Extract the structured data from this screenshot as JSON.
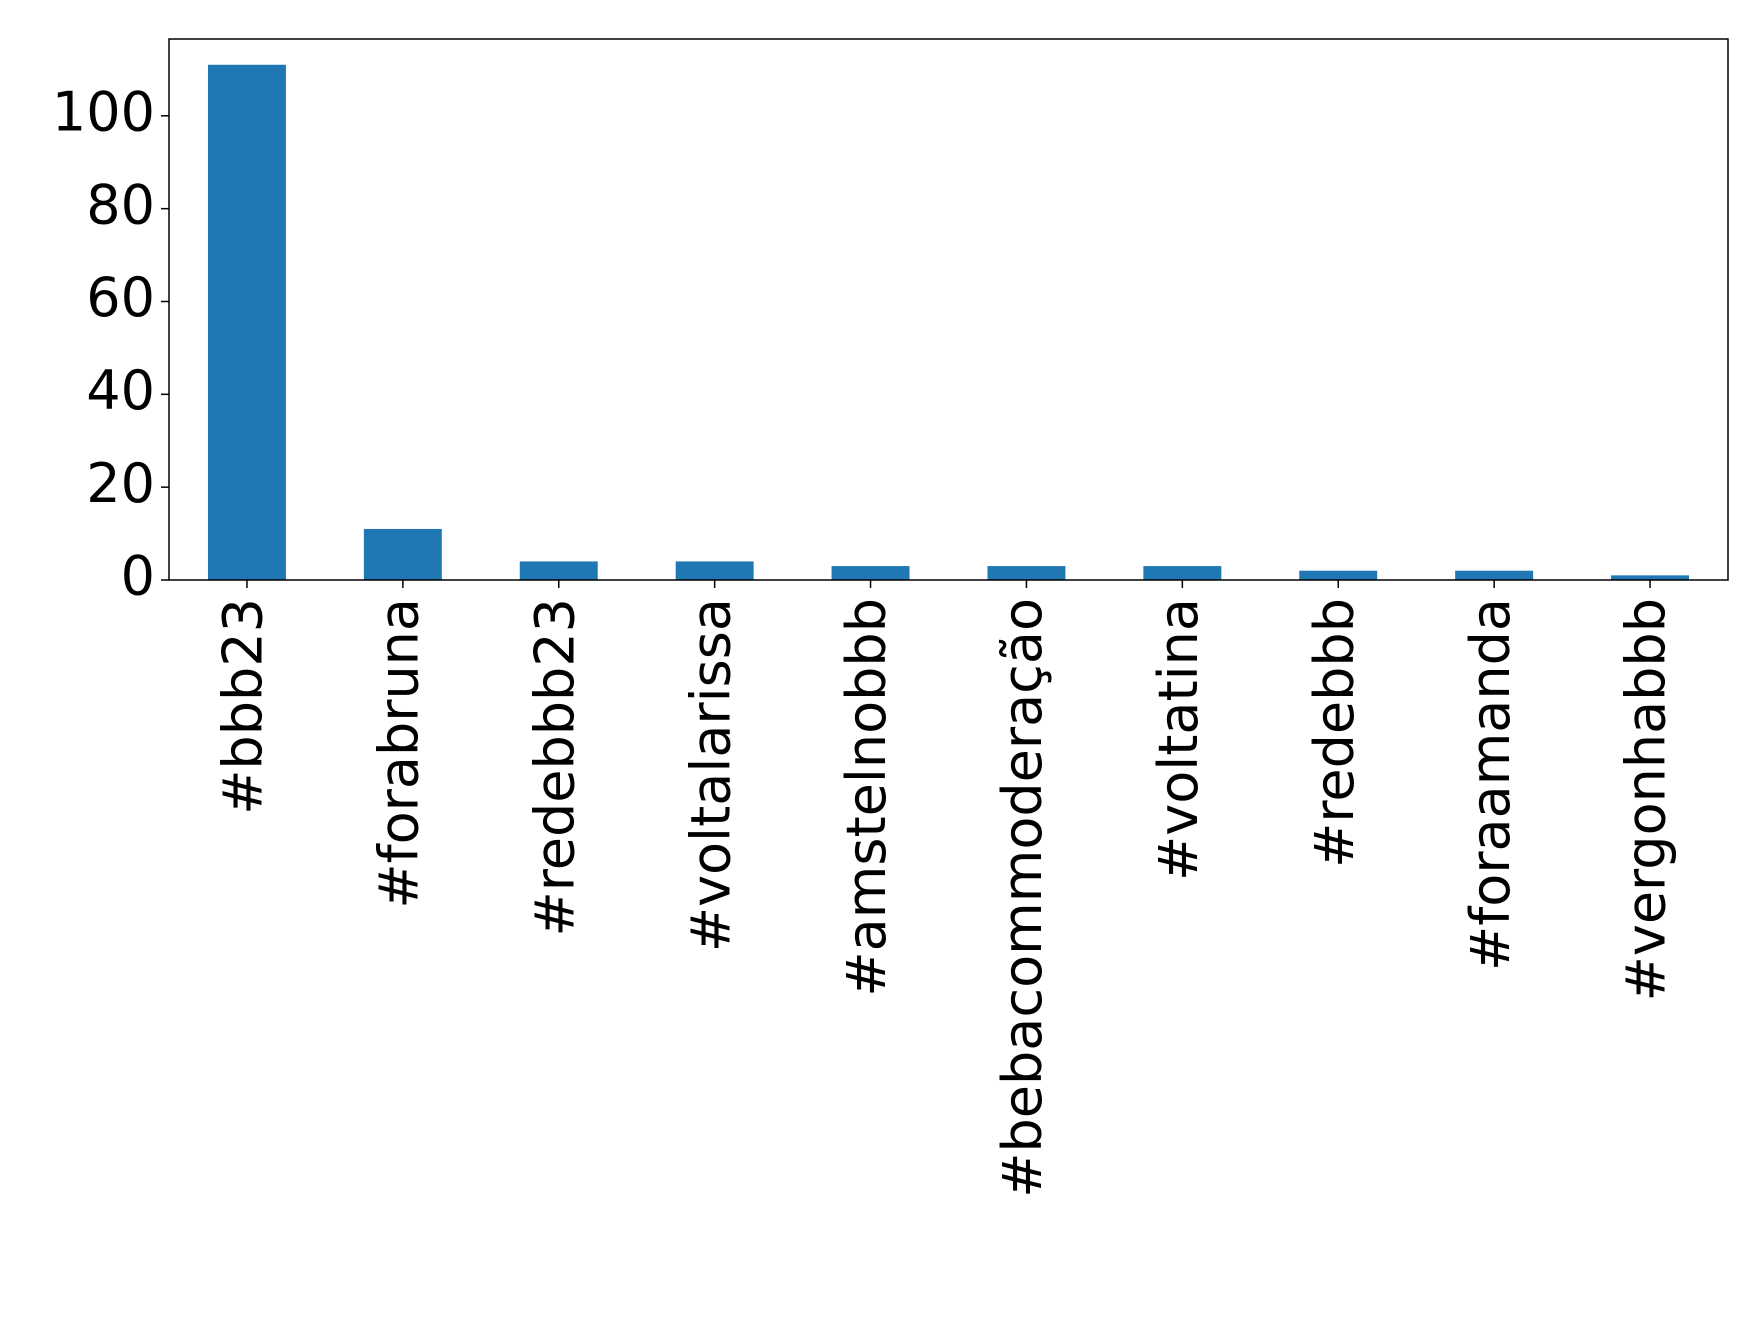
{
  "chart_data": {
    "type": "bar",
    "categories": [
      "#bbb23",
      "#forabruna",
      "#redebbb23",
      "#voltalarissa",
      "#amstelnobbb",
      "#bebacommoderação",
      "#voltatina",
      "#redebbb",
      "#foraamanda",
      "#vergonhabbb"
    ],
    "values": [
      111,
      11,
      4,
      4,
      3,
      3,
      3,
      2,
      2,
      1
    ],
    "color": "#1f77b4",
    "ylim": [
      0,
      116.55
    ],
    "yticks": [
      0,
      20,
      40,
      60,
      80,
      100
    ],
    "grid": false
  }
}
